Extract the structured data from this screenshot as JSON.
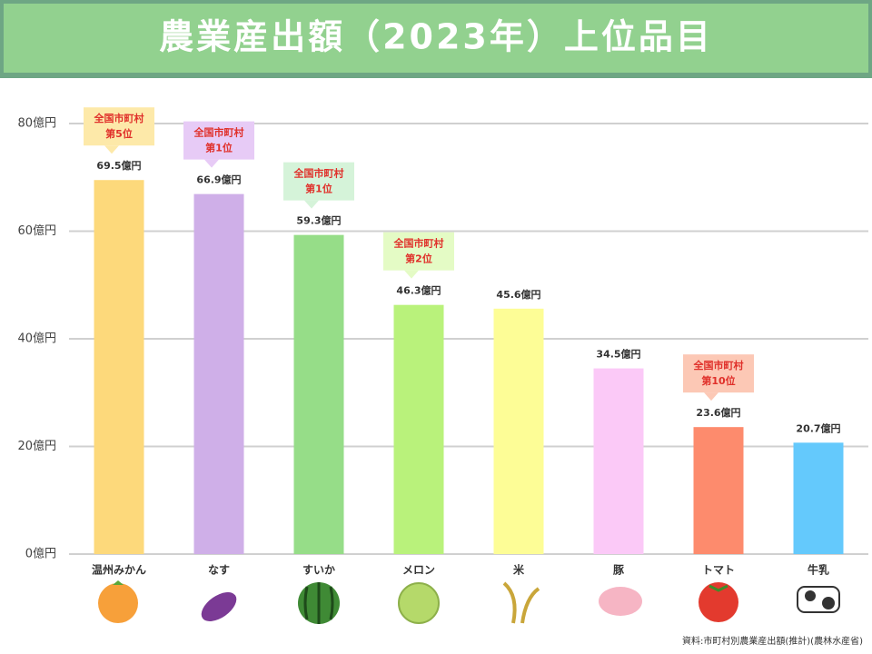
{
  "chart_data": {
    "type": "bar",
    "title": "農業産出額（2023年）上位品目",
    "categories": [
      "温州みかん",
      "なす",
      "すいか",
      "メロン",
      "米",
      "豚",
      "トマト",
      "牛乳"
    ],
    "values": [
      69.5,
      66.9,
      59.3,
      46.3,
      45.6,
      34.5,
      23.6,
      20.7
    ],
    "value_labels": [
      "69.5億円",
      "66.9億円",
      "59.3億円",
      "46.3億円",
      "45.6億円",
      "34.5億円",
      "23.6億円",
      "20.7億円"
    ],
    "colors": [
      "#fdd97b",
      "#cfafe8",
      "#96dd88",
      "#b9f27b",
      "#fdfd96",
      "#fbc9f7",
      "#fd8b6d",
      "#64c9fc"
    ],
    "annotations": [
      [
        "全国市町村",
        "第5位"
      ],
      [
        "全国市町村",
        "第1位"
      ],
      [
        "全国市町村",
        "第1位"
      ],
      [
        "全国市町村",
        "第2位"
      ],
      null,
      null,
      [
        "全国市町村",
        "第10位"
      ],
      null
    ],
    "annotation_colors": [
      "#fde9a9",
      "#e7cbf6",
      "#d5f3d9",
      "#e4fbc5",
      null,
      null,
      "#fcc8b5",
      null
    ],
    "ylim": [
      0,
      80
    ],
    "yticks": [
      {
        "value": 0,
        "label": "0億円"
      },
      {
        "value": 20,
        "label": "20億円"
      },
      {
        "value": 40,
        "label": "40億円"
      },
      {
        "value": 60,
        "label": "60億円"
      },
      {
        "value": 80,
        "label": "80億円"
      }
    ],
    "grid": true,
    "source": "資料:市町村別農業産出額(推計)(農林水産省)"
  }
}
